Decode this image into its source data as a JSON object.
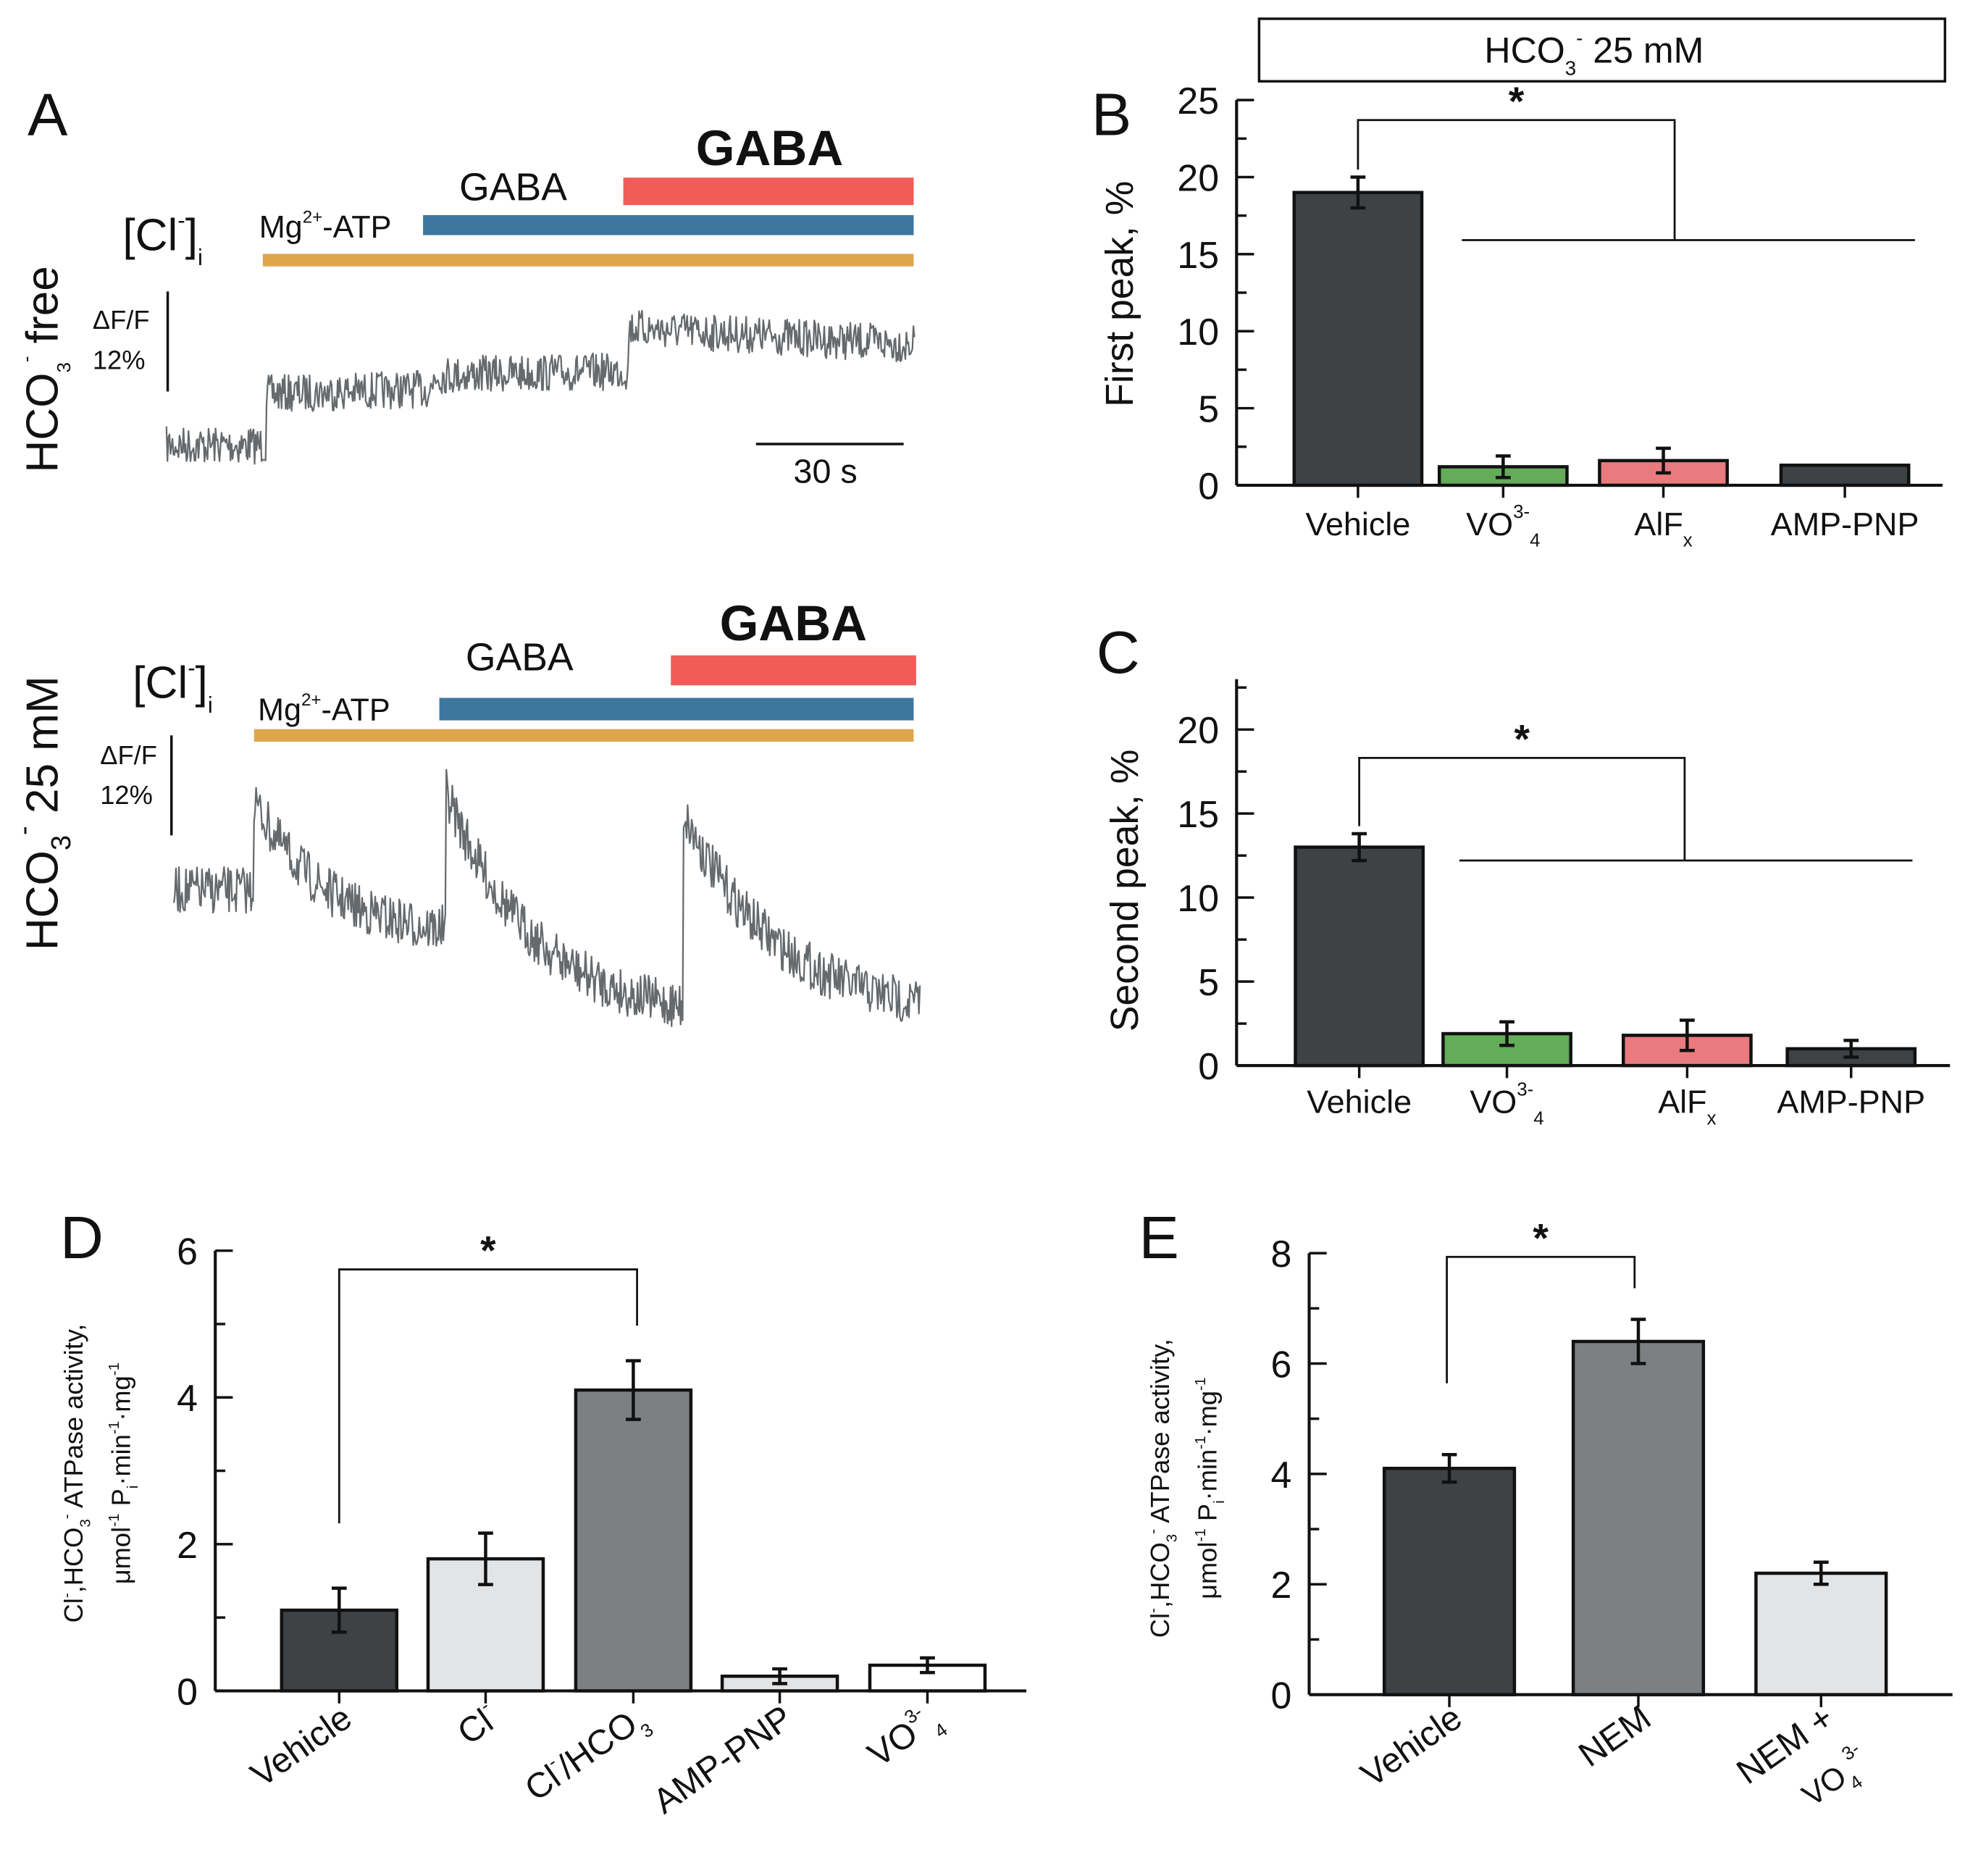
{
  "colors": {
    "mgatp": "#dea54a",
    "gaba1": "#3d77a0",
    "gaba2": "#f15c58",
    "trace": "#666a6d",
    "dark": "#3e4245",
    "green": "#63ac5a",
    "pink": "#e97b7f",
    "mid": "#7c8083",
    "light": "#e3e4e5",
    "white": "#ffffff"
  },
  "panel_a": {
    "letter": "A",
    "top": {
      "condition": "HCO",
      "condition_sub": "3",
      "condition_sup": "-",
      "condition_rest": " free",
      "cl_label": "[Cl",
      "cl_sup": "-",
      "cl_close": "]",
      "cl_sub": "i",
      "df_label": "ΔF/F",
      "df_value": "12%",
      "mg_label": "Mg",
      "mg_sup": "2+",
      "mg_rest": "-ATP",
      "gaba_small": "GABA",
      "gaba_big": "GABA",
      "time_scale": "30 s"
    },
    "bottom": {
      "condition": "HCO",
      "condition_sub": "3",
      "condition_sup": "-",
      "condition_rest": " 25 mM",
      "cl_label": "[Cl",
      "cl_sup": "-",
      "cl_close": "]",
      "cl_sub": "i",
      "df_label": "ΔF/F",
      "df_value": "12%",
      "mg_label": "Mg",
      "mg_sup": "2+",
      "mg_rest": "-ATP",
      "gaba_small": "GABA",
      "gaba_big": "GABA"
    }
  },
  "chart_data": [
    {
      "id": "B",
      "type": "bar",
      "panel_letter": "B",
      "header_box": {
        "text": "HCO",
        "sub": "3",
        "sup": "-",
        "rest": " 25 mM"
      },
      "ylabel": "First peak, %",
      "ylim": [
        0,
        25
      ],
      "yticks": [
        0,
        5,
        10,
        15,
        20,
        25
      ],
      "categories": [
        "Vehicle",
        "VO",
        "AlF",
        "AMP-PNP"
      ],
      "category_sub": [
        "",
        "4",
        "x",
        ""
      ],
      "category_sup": [
        "",
        "3-",
        "",
        ""
      ],
      "values": [
        19,
        1.2,
        1.6,
        1.3
      ],
      "errors": [
        1.0,
        0.7,
        0.8,
        0
      ],
      "colors": [
        "dark",
        "green",
        "pink",
        "dark"
      ],
      "significance": "*"
    },
    {
      "id": "C",
      "type": "bar",
      "panel_letter": "C",
      "ylabel": "Second peak, %",
      "ylim": [
        0,
        23
      ],
      "yticks": [
        0,
        5,
        10,
        15,
        20
      ],
      "categories": [
        "Vehicle",
        "VO",
        "AlF",
        "AMP-PNP"
      ],
      "category_sub": [
        "",
        "4",
        "x",
        ""
      ],
      "category_sup": [
        "",
        "3-",
        "",
        ""
      ],
      "values": [
        13,
        1.9,
        1.8,
        1.0
      ],
      "errors": [
        0.8,
        0.7,
        0.9,
        0.5
      ],
      "colors": [
        "dark",
        "green",
        "pink",
        "dark"
      ],
      "significance": "*"
    },
    {
      "id": "D",
      "type": "bar",
      "panel_letter": "D",
      "ylabel_line1": "Cl",
      "ylabel_line1_sup": "-",
      "ylabel_line1_b": ",HCO",
      "ylabel_line1_sub": "3",
      "ylabel_line1_sup2": "-",
      "ylabel_line1_rest": " ATPase activity,",
      "ylabel_line2": "μmol",
      "ylabel_line2_sup": "-1",
      "ylabel_line2_b": " P",
      "ylabel_line2_sub": "i",
      "ylabel_line2_c": "·min",
      "ylabel_line2_sup2": "-1",
      "ylabel_line2_d": "·mg",
      "ylabel_line2_sup3": "-1",
      "ylim": [
        0,
        6
      ],
      "yticks": [
        0,
        2,
        4,
        6
      ],
      "categories": [
        "Vehicle",
        "Cl",
        "Cl",
        "AMP-PNP",
        "VO"
      ],
      "category_sup": [
        "",
        "-",
        "-",
        "",
        "3-"
      ],
      "category_rest": [
        "",
        "",
        "/HCO",
        "",
        ""
      ],
      "category_sub": [
        "",
        "",
        "3",
        "",
        "4"
      ],
      "values": [
        1.1,
        1.8,
        4.1,
        0.2,
        0.35
      ],
      "errors": [
        0.3,
        0.35,
        0.4,
        0.1,
        0.1
      ],
      "colors": [
        "dark",
        "light",
        "mid",
        "light",
        "white"
      ],
      "significance": "*"
    },
    {
      "id": "E",
      "type": "bar",
      "panel_letter": "E",
      "ylabel_line1": "Cl",
      "ylabel_line1_sup": "-",
      "ylabel_line1_b": ",HCO",
      "ylabel_line1_sub": "3",
      "ylabel_line1_sup2": "-",
      "ylabel_line1_rest": " ATPase activity,",
      "ylabel_line2": "μmol",
      "ylabel_line2_sup": "-1",
      "ylabel_line2_b": " P",
      "ylabel_line2_sub": "i",
      "ylabel_line2_c": "·min",
      "ylabel_line2_sup2": "-1",
      "ylabel_line2_d": "·mg",
      "ylabel_line2_sup3": "-1",
      "ylim": [
        0,
        8
      ],
      "yticks": [
        0,
        2,
        4,
        6,
        8
      ],
      "categories": [
        "Vehicle",
        "NEM",
        "NEM +"
      ],
      "category_line2": [
        "",
        "",
        "VO"
      ],
      "category_line2_sub": [
        "",
        "",
        "4"
      ],
      "category_line2_sup": [
        "",
        "",
        "3-"
      ],
      "values": [
        4.1,
        6.4,
        2.2
      ],
      "errors": [
        0.25,
        0.4,
        0.2
      ],
      "colors": [
        "dark",
        "mid",
        "light"
      ],
      "significance": "*"
    }
  ]
}
